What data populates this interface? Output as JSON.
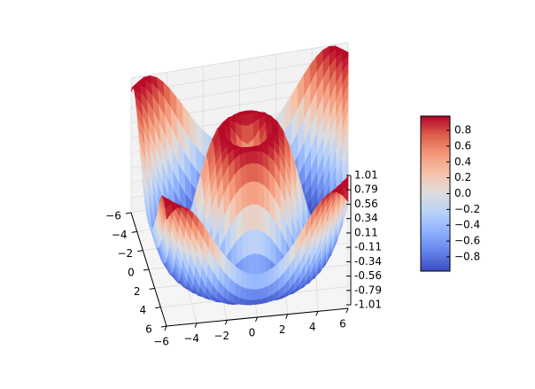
{
  "chart_data": {
    "type": "surface3d",
    "function": "z = sin(sqrt(x^2 + y^2))",
    "colormap": "coolwarm",
    "x_ticks": [
      "−6",
      "−4",
      "−2",
      "0",
      "2",
      "4",
      "6"
    ],
    "y_ticks": [
      "−6",
      "−4",
      "−2",
      "0",
      "2",
      "4",
      "6"
    ],
    "z_ticks": [
      "1.01",
      "0.79",
      "0.56",
      "0.34",
      "0.11",
      "-0.11",
      "-0.34",
      "-0.56",
      "-0.79",
      "-1.01"
    ],
    "xlim": [
      -6,
      6
    ],
    "ylim": [
      -6,
      6
    ],
    "zlim": [
      -1.01,
      1.01
    ],
    "colorbar_ticks": [
      "0.8",
      "0.6",
      "0.4",
      "0.2",
      "0.0",
      "−0.2",
      "−0.4",
      "−0.6",
      "−0.8"
    ],
    "colorbar_values": [
      0.8,
      0.6,
      0.4,
      0.2,
      0.0,
      -0.2,
      -0.4,
      -0.6,
      -0.8
    ],
    "colorbar_range": [
      -0.98,
      0.98
    ],
    "grid": true
  }
}
